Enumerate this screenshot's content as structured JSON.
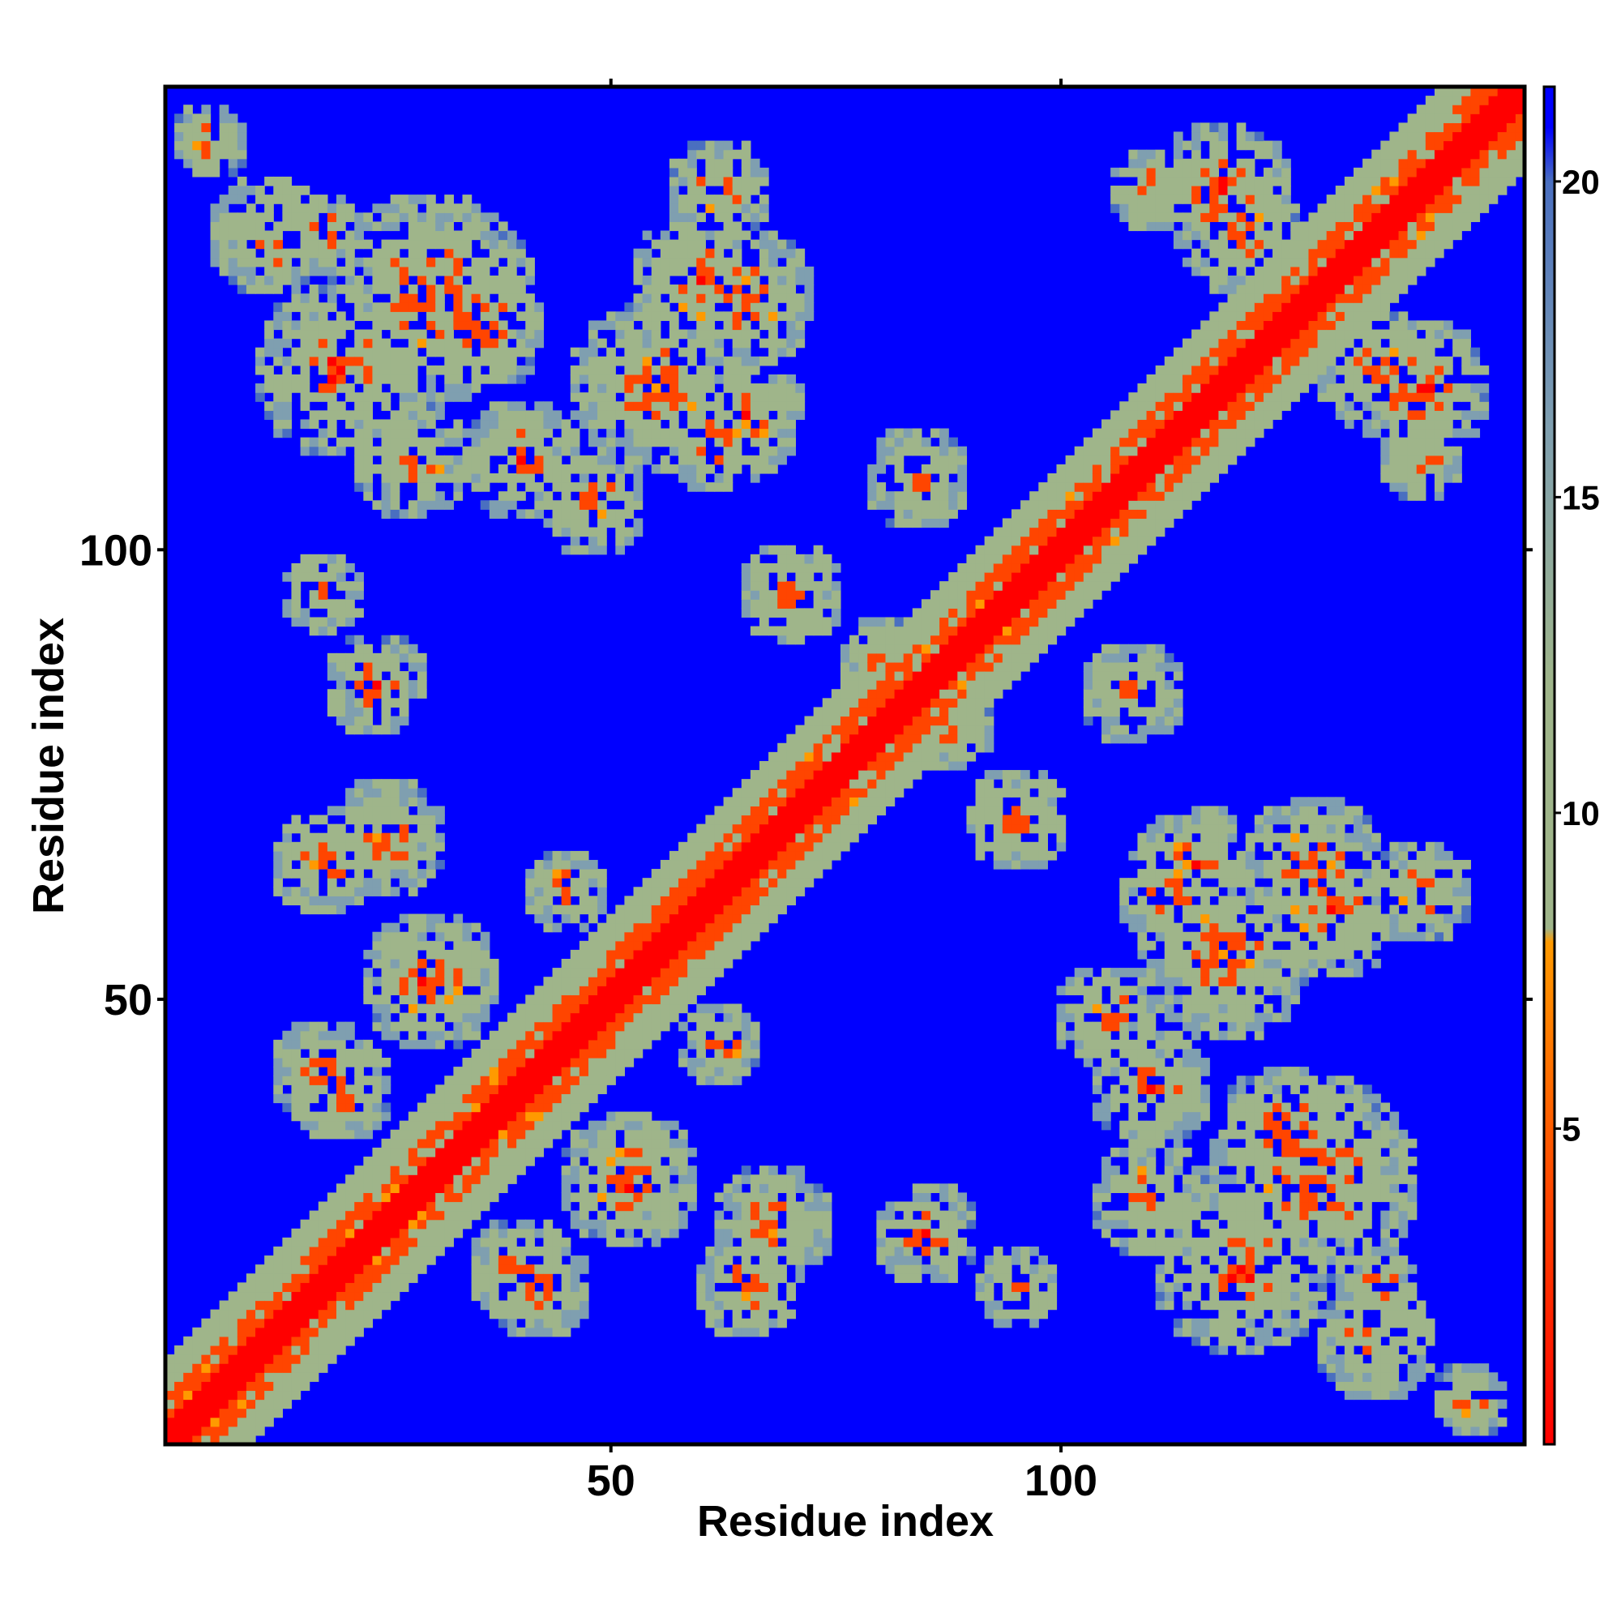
{
  "chart_data": {
    "type": "heatmap",
    "title": "",
    "xlabel": "Residue index",
    "ylabel": "Residue index",
    "xlim": [
      1,
      151
    ],
    "ylim": [
      1,
      151
    ],
    "x_ticks": [
      50,
      100
    ],
    "y_ticks": [
      50,
      100
    ],
    "colorbar": {
      "range": [
        0,
        21.5
      ],
      "ticks": [
        5,
        10,
        15,
        20
      ],
      "stops": [
        {
          "value": 0,
          "color": "#ff0000"
        },
        {
          "value": 4,
          "color": "#ff4500"
        },
        {
          "value": 8,
          "color": "#ff9a00"
        },
        {
          "value": 8.2,
          "color": "#9fb58a"
        },
        {
          "value": 12,
          "color": "#9fb58a"
        },
        {
          "value": 16,
          "color": "#7f9fb0"
        },
        {
          "value": 20,
          "color": "#4a6fc0"
        },
        {
          "value": 20.8,
          "color": "#0000ff"
        }
      ]
    },
    "matrix_description": "symmetric residue-residue distance map; strong diagonal, off-diagonal contact clusters",
    "contact_clusters": [
      {
        "x": [
          2,
          6
        ],
        "y": [
          143,
          148
        ],
        "level": "orange"
      },
      {
        "x": [
          143,
          148
        ],
        "y": [
          2,
          6
        ],
        "level": "orange"
      },
      {
        "x": [
          12,
          18
        ],
        "y": [
          58,
          66
        ],
        "level": "orange"
      },
      {
        "x": [
          58,
          66
        ],
        "y": [
          12,
          18
        ],
        "level": "orange"
      },
      {
        "x": [
          10,
          16
        ],
        "y": [
          38,
          46
        ],
        "level": "orange"
      },
      {
        "x": [
          38,
          46
        ],
        "y": [
          10,
          16
        ],
        "level": "orange"
      },
      {
        "x": [
          40,
          48
        ],
        "y": [
          10,
          18
        ],
        "level": "orange"
      },
      {
        "x": [
          58,
          66
        ],
        "y": [
          12,
          18
        ],
        "level": "orange"
      },
      {
        "x": [
          60,
          66
        ],
        "y": [
          116,
          124
        ],
        "level": "orange"
      },
      {
        "x": [
          116,
          124
        ],
        "y": [
          60,
          66
        ],
        "level": "orange"
      },
      {
        "x": [
          112,
          120
        ],
        "y": [
          60,
          68
        ],
        "level": "orange"
      },
      {
        "x": [
          140,
          146
        ],
        "y": [
          2,
          6
        ],
        "level": "orange"
      }
    ],
    "grid": false,
    "legend": "colorbar-right"
  }
}
